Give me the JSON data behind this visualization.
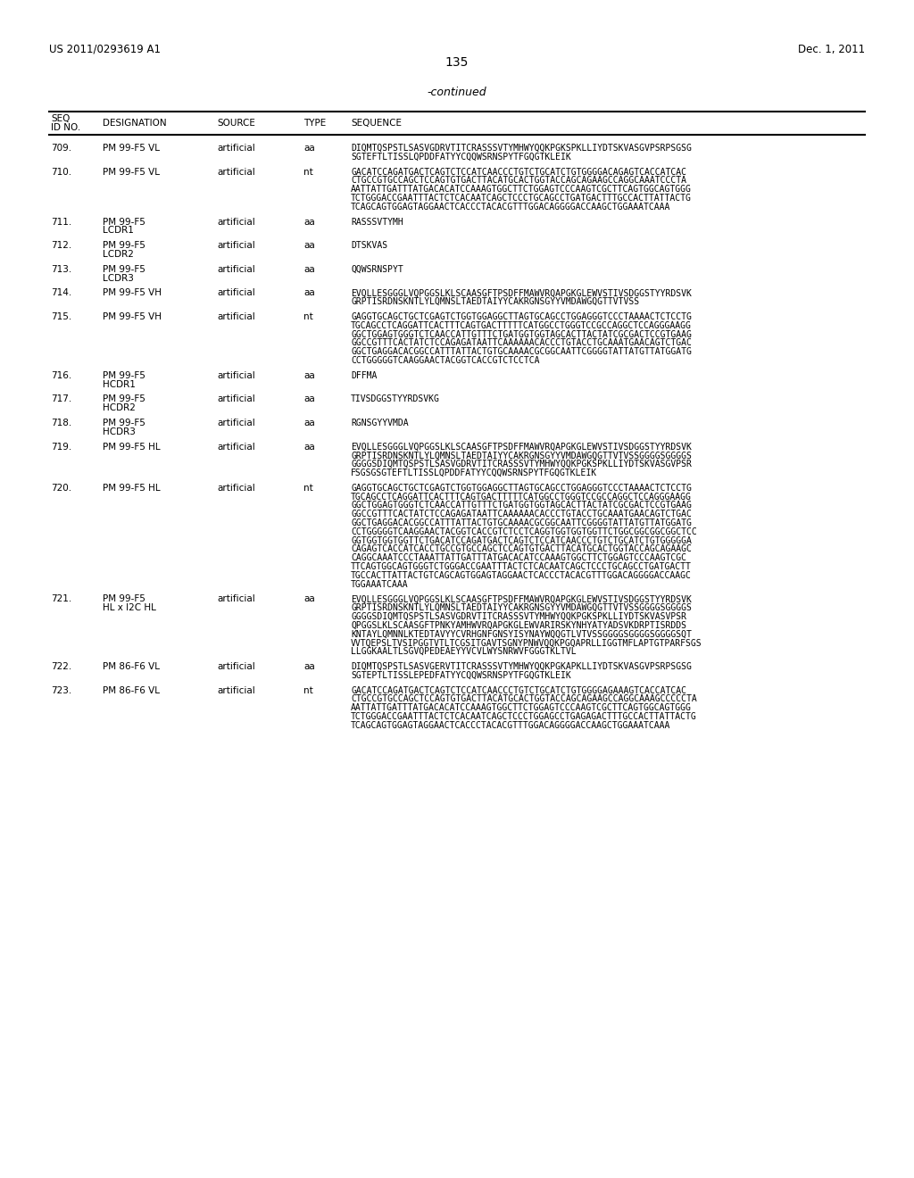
{
  "page_left": "US 2011/0293619 A1",
  "page_right": "Dec. 1, 2011",
  "page_number": "135",
  "continued_text": "-continued",
  "background_color": "#ffffff",
  "entries": [
    {
      "id": "709.",
      "designation": "PM 99-F5 VL",
      "desig2": "",
      "source": "artificial",
      "type": "aa",
      "sequence": [
        "DIQMTQSPSTLSASVGDRVTITCRASSSVTYMHWYQQKPGKSPKLLIYDTSKVASGVPSRPSGSG",
        "SGTEFTLTISSLQPDDFATYYCQQWSRNSPYTFGQGTKLEIK"
      ]
    },
    {
      "id": "710.",
      "designation": "PM 99-F5 VL",
      "desig2": "",
      "source": "artificial",
      "type": "nt",
      "sequence": [
        "GACATCCAGATGACTCAGTCTCCATCAACCCTGTCTGCATCTGTGGGGACAGAGTCACCATCAC",
        "CTGCCGTGCCAGCTCCAGTGTGACTTACATGCACTGGTACCAGCAGAAGCCAGGCAAATCCCTA",
        "AATTATTGATTTATGACACATCCAAAGTGGCTTCTGGAGTCCCAAGTCGCTTCAGTGGCAGTGGG",
        "TCTGGGACCGAATTTACTCTCACAATCAGCTCCCTGCAGCCTGATGACTTTGCCACTTATTACTG",
        "TCAGCAGTGGAGTAGGAACTCACCCTACACGTTTGGACAGGGGACCAAGCTGGAAATCAAA"
      ]
    },
    {
      "id": "711.",
      "designation": "PM 99-F5",
      "desig2": "LCDR1",
      "source": "artificial",
      "type": "aa",
      "sequence": [
        "RASSSVTYMH"
      ]
    },
    {
      "id": "712.",
      "designation": "PM 99-F5",
      "desig2": "LCDR2",
      "source": "artificial",
      "type": "aa",
      "sequence": [
        "DTSKVAS"
      ]
    },
    {
      "id": "713.",
      "designation": "PM 99-F5",
      "desig2": "LCDR3",
      "source": "artificial",
      "type": "aa",
      "sequence": [
        "QQWSRNSPYT"
      ]
    },
    {
      "id": "714.",
      "designation": "PM 99-F5 VH",
      "desig2": "",
      "source": "artificial",
      "type": "aa",
      "sequence": [
        "EVQLLESGGGLVQPGGSLKLSCAASGFTPSDFFMAWVRQAPGKGLEWVSTIVSDGGSTYYRDSVK",
        "GRPTISRDNSKNTLYLQMNSLTAEDTAIYYCAKRGNSGYYVMDAWGQGTTVTVSS"
      ]
    },
    {
      "id": "715.",
      "designation": "PM 99-F5 VH",
      "desig2": "",
      "source": "artificial",
      "type": "nt",
      "sequence": [
        "GAGGTGCAGCTGCTCGAGTCTGGTGGAGGCTTAGTGCAGCCTGGAGGGTCCCTAAAACTCTCCTG",
        "TGCAGCCTCAGGATTCACTTTCAGTGACTTTTTCATGGCCTGGGTCCGCCAGGCTCCAGGGAAGG",
        "GGCTGGAGTGGGTCTCAACCATTGTTTCTGATGGTGGTAGCACTTACTATCGCGACTCCGTGAAG",
        "GGCCGTTTCACTATCTCCAGAGATAATTCAAAAAACACCCTGTACCTGCAAATGAACAGTCTGAC",
        "GGCTGAGGACACGGCCATTTATTACTGTGCAAAACGCGGCAATTCGGGGTATTATGTTATGGATG",
        "CCTGGGGGTCAAGGAACTACGGTCACCGTCTCCTCA"
      ]
    },
    {
      "id": "716.",
      "designation": "PM 99-F5",
      "desig2": "HCDR1",
      "source": "artificial",
      "type": "aa",
      "sequence": [
        "DFFMA"
      ]
    },
    {
      "id": "717.",
      "designation": "PM 99-F5",
      "desig2": "HCDR2",
      "source": "artificial",
      "type": "aa",
      "sequence": [
        "TIVSDGGSTYYRDSVKG"
      ]
    },
    {
      "id": "718.",
      "designation": "PM 99-F5",
      "desig2": "HCDR3",
      "source": "artificial",
      "type": "aa",
      "sequence": [
        "RGNSGYYVMDA"
      ]
    },
    {
      "id": "719.",
      "designation": "PM 99-F5 HL",
      "desig2": "",
      "source": "artificial",
      "type": "aa",
      "sequence": [
        "EVQLLESGGGLVQPGGSLKLSCAASGFTPSDFFMAWVRQAPGKGLEWVSTIVSDGGSTYYRDSVK",
        "GRPTISRDNSKNTLYLQMNSLTAEDTAIYYCAKRGNSGYYVMDAWGQGTTVTVSSGGGGSGGGGS",
        "GGGGSDIQMTQSPSTLSASVGDRVTITCRASSSVTYMHWYQQKPGKSPKLLIYDTSKVASGVPSR",
        "FSGSGSGTEFTLTISSLQPDDFATYYCQQWSRNSPYTFGQGTKLEIK"
      ]
    },
    {
      "id": "720.",
      "designation": "PM 99-F5 HL",
      "desig2": "",
      "source": "artificial",
      "type": "nt",
      "sequence": [
        "GAGGTGCAGCTGCTCGAGTCTGGTGGAGGCTTAGTGCAGCCTGGAGGGTCCCTAAAACTCTCCTG",
        "TGCAGCCTCAGGATTCACTTTCAGTGACTTTTTCATGGCCTGGGTCCGCCAGGCTCCAGGGAAGG",
        "GGCTGGAGTGGGTCTCAACCATTGTTTCTGATGGTGGTAGCACTTACTATCGCGACTCCGTGAAG",
        "GGCCGTTTCACTATCTCCAGAGATAATTCAAAAAACACCCTGTACCTGCAAATGAACAGTCTGAC",
        "GGCTGAGGACACGGCCATTTATTACTGTGCAAAACGCGGCAATTCGGGGTATTATGTTATGGATG",
        "CCTGGGGGTCAAGGAACTACGGTCACCGTCTCCTCAGGTGGTGGTGGTTCTGGCGGCGGCGGCTCC",
        "GGTGGTGGTGGTTCTGACATCCAGATGACTCAGTCTCCATCAACCCTGTCTGCATCTGTGGGGGA",
        "CAGAGTCACCATCACCTGCCGTGCCAGCTCCAGTGTGACTTACATGCACTGGTACCAGCAGAAGC",
        "CAGGCAAATCCCTAAATTATTGATTTATGACACATCCAAAGTGGCTTCTGGAGTCCCAAGTCGC",
        "TTCAGTGGCAGTGGGTCTGGGACCGAATTTACTCTCACAATCAGCTCCCTGCAGCCTGATGACTT",
        "TGCCACTTATTACTGTCAGCAGTGGAGTAGGAACTCACCCTACACGTTTGGACAGGGGACCAAGC",
        "TGGAAATCAAA"
      ]
    },
    {
      "id": "721.",
      "designation": "PM 99-F5",
      "desig2": "HL x I2C HL",
      "source": "artificial",
      "type": "aa",
      "sequence": [
        "EVQLLESGGGLVQPGGSLKLSCAASGFTPSDFFMAWVRQAPGKGLEWVSTIVSDGGSTYYRDSVK",
        "GRPTISRDNSKNTLYLQMNSLTAEDTAIYYCAKRGNSGYYVMDAWGQGTTVTVSSGGGGSGGGGS",
        "GGGGSDIQMTQSPSTLSASVGDRVTITCRASSSVTYMHWYQQKPGKSPKLLIYDTSKVASVPSR",
        "QPGGSLKLSCAASGFTPNKYAMHWVRQAPGKGLEWVARIRSKYNHYATYADSVKDRPTISRDDS",
        "KNTAYLQMNNLKTEDTAVYYCVRHGNFGNSYISYNAYWQQGTLVTVSSGGGGSGGGGSGGGGSQT",
        "VVTQEPSLTVSIPGGTVTLTCGSITGAVTSGNYPNWVQQKPGQAPRLLIGGTMFLAPTGTPARFSGS",
        "LLGGKAALTLSGVQPEDEAEYYVCVLWYSNRWVFGGGTKLTVL"
      ]
    },
    {
      "id": "722.",
      "designation": "PM 86-F6 VL",
      "desig2": "",
      "source": "artificial",
      "type": "aa",
      "sequence": [
        "DIQMTQSPSTLSASVGERVTITCRASSSVTYMHWYQQKPGKAPKLLIYDTSKVASGVPSRPSGSG",
        "SGTEPTLTISSLEPEDFATYYCQQWSRNSPYTFGQGTKLEIK"
      ]
    },
    {
      "id": "723.",
      "designation": "PM 86-F6 VL",
      "desig2": "",
      "source": "artificial",
      "type": "nt",
      "sequence": [
        "GACATCCAGATGACTCAGTCTCCATCAACCCTGTCTGCATCTGTGGGGAGAAAGTCACCATCAC",
        "CTGCCGTGCCAGCTCCAGTGTGACTTACATGCACTGGTACCAGCAGAAGCCAGGCAAAGCCCCCTA",
        "AATTATTGATTTATGACACATCCAAAGTGGCTTCTGGAGTCCCAAGTCGCTTCAGTGGCAGTGGG",
        "TCTGGGACCGAATTTACTCTCACAATCAGCTCCCTGGAGCCTGAGAGACTTTGCCACTTATTACTG",
        "TCAGCAGTGGAGTAGGAACTCACCCTACACGTTTGGACAGGGGACCAAGCTGGAAATCAAA"
      ]
    }
  ]
}
